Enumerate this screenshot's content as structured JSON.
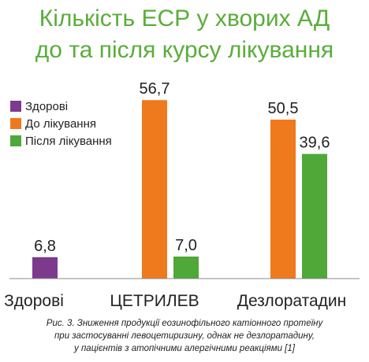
{
  "chart_data": {
    "type": "bar",
    "title_lines": [
      "Кількість ЕСР у хворих АД",
      "до та після курсу лікування"
    ],
    "categories": [
      "Здорові",
      "ЦЕТРИЛЕВ",
      "Дезлоратадин"
    ],
    "series": [
      {
        "name": "Здорові",
        "color": "#7b3a8c",
        "values": [
          6.8,
          null,
          null
        ]
      },
      {
        "name": "До лікування",
        "color": "#ee7a1d",
        "values": [
          null,
          56.7,
          50.5
        ]
      },
      {
        "name": "Після лікування",
        "color": "#4fa838",
        "values": [
          null,
          7.0,
          39.6
        ]
      }
    ],
    "data_labels": {
      "healthy": "6,8",
      "cetrilev_before": "56,7",
      "cetrilev_after": "7,0",
      "dezlo_before": "50,5",
      "dezlo_after": "39,6"
    },
    "ylim": [
      0,
      60
    ],
    "legend_position": "top-left",
    "grid": false
  },
  "caption_lines": [
    "Рис. 3. Зниження продукції еозинофільного катіонного протеїну",
    "при застосуванні левоцетиризину, однак не дезлоратадину,",
    "у пацієнтів з атопічними алергічними реакціями [1]"
  ]
}
